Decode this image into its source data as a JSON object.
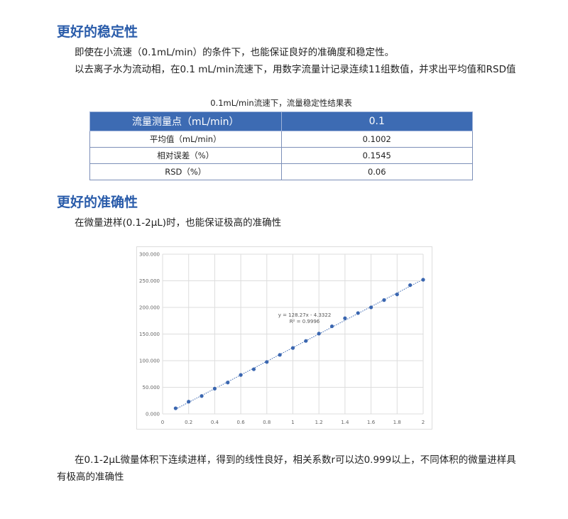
{
  "section1": {
    "heading": "更好的稳定性",
    "para1": "即使在小流速（0.1mL/min）的条件下，也能保证良好的准确度和稳定性。",
    "para2": "以去离子水为流动相，在0.1 mL/min流速下，用数字流量计记录连续11组数值，并求出平均值和RSD值"
  },
  "table": {
    "caption": "0.1mL/min流速下，流量稳定性结果表",
    "header": [
      "流量测量点（mL/min）",
      "0.1"
    ],
    "rows": [
      [
        "平均值（mL/min）",
        "0.1002"
      ],
      [
        "相对误差（%）",
        "0.1545"
      ],
      [
        "RSD（%）",
        "0.06"
      ]
    ],
    "header_color": "#3d6bb3"
  },
  "section2": {
    "heading": "更好的准确性",
    "para1": "在微量进样(0.1-2μL)时，也能保证极高的准确性",
    "para2": "在0.1-2μL微量体积下连续进样，得到的线性良好，相关系数r可以达0.999以上，不同体积的微量进样具有极高的准确性"
  },
  "chart_data": {
    "type": "scatter",
    "x": [
      0.1,
      0.2,
      0.3,
      0.4,
      0.5,
      0.6,
      0.7,
      0.8,
      0.9,
      1.0,
      1.1,
      1.2,
      1.3,
      1.4,
      1.5,
      1.6,
      1.7,
      1.8,
      1.9,
      2.0
    ],
    "y": [
      10600,
      23000,
      33700,
      47500,
      59000,
      73200,
      83900,
      97600,
      110900,
      123800,
      137100,
      150800,
      164600,
      179700,
      189400,
      200100,
      213800,
      224500,
      241800,
      252000
    ],
    "xlim": [
      0,
      2
    ],
    "ylim": [
      0,
      300000
    ],
    "xticks": [
      "0",
      "0.2",
      "0.4",
      "0.6",
      "0.8",
      "1",
      "1.2",
      "1.4",
      "1.6",
      "1.8",
      "2"
    ],
    "yticks": [
      "0.000",
      "50.000",
      "100.000",
      "150.000",
      "200.000",
      "250.000",
      "300.000"
    ],
    "trendline": "linear dotted",
    "annotation": [
      "y = 128.27x - 4.3322",
      "R² = 0.9996"
    ],
    "grid": true,
    "color": "#3a66b0"
  }
}
